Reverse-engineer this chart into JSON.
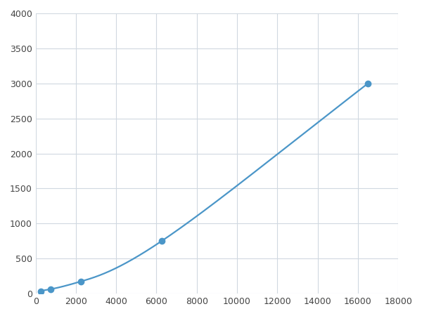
{
  "x": [
    250,
    750,
    2250,
    6250,
    16500
  ],
  "y": [
    30,
    65,
    175,
    750,
    3000
  ],
  "line_color": "#4b96c8",
  "marker_color": "#4b96c8",
  "marker_size": 6,
  "line_width": 1.6,
  "xlim": [
    0,
    18000
  ],
  "ylim": [
    0,
    4000
  ],
  "xticks": [
    0,
    2000,
    4000,
    6000,
    8000,
    10000,
    12000,
    14000,
    16000,
    18000
  ],
  "yticks": [
    0,
    500,
    1000,
    1500,
    2000,
    2500,
    3000,
    3500,
    4000
  ],
  "grid_color": "#d0d8e0",
  "background_color": "#ffffff",
  "figsize": [
    6.0,
    4.5
  ],
  "dpi": 100
}
